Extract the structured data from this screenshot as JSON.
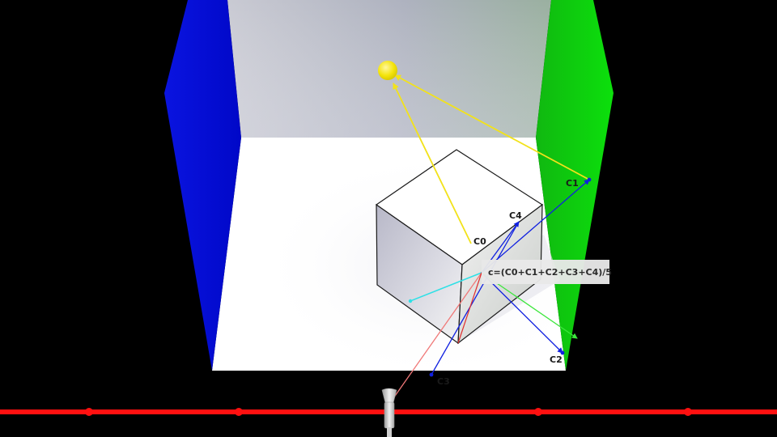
{
  "labels": {
    "c0": "C0",
    "c1": "C1",
    "c2": "C2",
    "c3": "C3",
    "c4": "C4"
  },
  "formula": "c=(C0+C1+C2+C3+C4)/5",
  "colors": {
    "left_wall": "#0a14e6",
    "right_wall": "#0cd40c",
    "back_wall": "#b8bcc8",
    "floor": "#ffffff",
    "light": "#f4e40a",
    "ray_light": "#f2e21a",
    "ray_blue": "#1020e0",
    "ray_cyan": "#2ee0e6",
    "ray_green": "#3ce63c",
    "ray_red": "#f07070",
    "timeline": "#ff1010"
  },
  "icons": {
    "light": "sphere-light-icon",
    "camera": "camera-icon"
  }
}
